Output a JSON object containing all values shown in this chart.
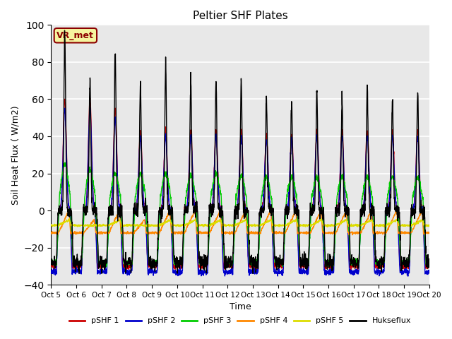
{
  "title": "Peltier SHF Plates",
  "xlabel": "Time",
  "ylabel": "Soil Heat Flux ( W/m2)",
  "ylim": [
    -40,
    100
  ],
  "plot_bg_color": "#e8e8e8",
  "grid_color": "white",
  "annotation_text": "VR_met",
  "annotation_bg": "#f5f5a0",
  "annotation_border": "#8B0000",
  "x_tick_labels": [
    "Oct 5",
    "Oct 6",
    "Oct 7",
    "Oct 8",
    "Oct 9",
    "Oct 10",
    "Oct 11",
    "Oct 12",
    "Oct 13",
    "Oct 14",
    "Oct 15",
    "Oct 16",
    "Oct 17",
    "Oct 18",
    "Oct 19",
    "Oct 20"
  ],
  "series_colors": {
    "pSHF 1": "#cc0000",
    "pSHF 2": "#0000cc",
    "pSHF 3": "#00cc00",
    "pSHF 4": "#ff8800",
    "pSHF 5": "#dddd00",
    "Hukseflux": "#000000"
  },
  "n_days": 15,
  "pts_per_day": 144,
  "day_peaks_shf1": [
    60,
    60,
    55,
    43,
    43,
    43,
    43,
    43,
    40,
    40,
    43,
    43,
    43,
    43,
    43
  ],
  "day_peaks_shf2": [
    55,
    55,
    50,
    40,
    40,
    40,
    40,
    40,
    38,
    38,
    40,
    40,
    40,
    40,
    40
  ],
  "day_peaks_shf3": [
    25,
    22,
    20,
    20,
    20,
    19,
    20,
    19,
    18,
    18,
    18,
    18,
    18,
    18,
    18
  ],
  "day_peaks_shf4": [
    0,
    -5,
    0,
    -5,
    0,
    0,
    0,
    0,
    0,
    0,
    0,
    0,
    0,
    0,
    0
  ],
  "day_peaks_shf5": [
    -5,
    -8,
    -5,
    -8,
    -5,
    -5,
    -5,
    -5,
    -5,
    -5,
    -5,
    -5,
    -5,
    -5,
    -5
  ],
  "day_peaks_huk": [
    97,
    70,
    85,
    70,
    78,
    70,
    70,
    70,
    60,
    60,
    63,
    60,
    67,
    60,
    65
  ],
  "night_trough_shf1": -30,
  "night_trough_shf2": -33,
  "night_trough_shf3": -28,
  "night_trough_shf4": -12,
  "night_trough_shf5": -8,
  "night_trough_huk": -28
}
